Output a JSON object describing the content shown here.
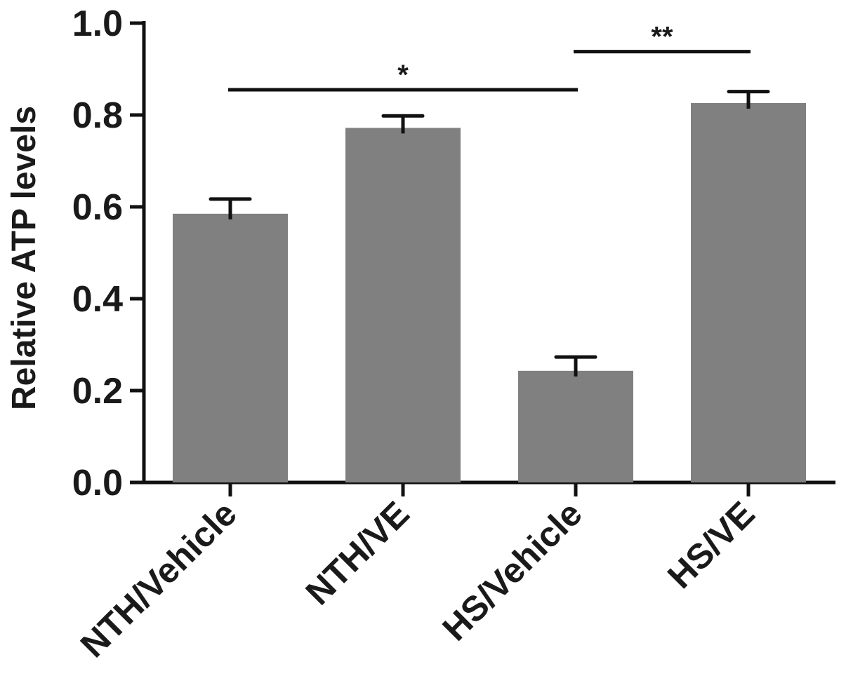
{
  "chart_data": {
    "type": "bar",
    "categories": [
      "NTH/Vehicle",
      "NTH/VE",
      "HS/Vehicle",
      "HS/VE"
    ],
    "values": [
      0.585,
      0.772,
      0.243,
      0.826
    ],
    "error_upper": [
      0.032,
      0.026,
      0.03,
      0.025
    ],
    "ylabel": "Relative ATP levels",
    "xlabel": "",
    "ylim": [
      0,
      1.0
    ],
    "yticks": [
      "0.0",
      "0.2",
      "0.4",
      "0.6",
      "0.8",
      "1.0"
    ],
    "bar_color": "#808080",
    "significance": [
      {
        "from": "NTH/Vehicle",
        "to": "HS/Vehicle",
        "label": "*",
        "y": 0.855
      },
      {
        "from": "HS/Vehicle",
        "to": "HS/VE",
        "label": "**",
        "y": 0.938
      }
    ]
  }
}
